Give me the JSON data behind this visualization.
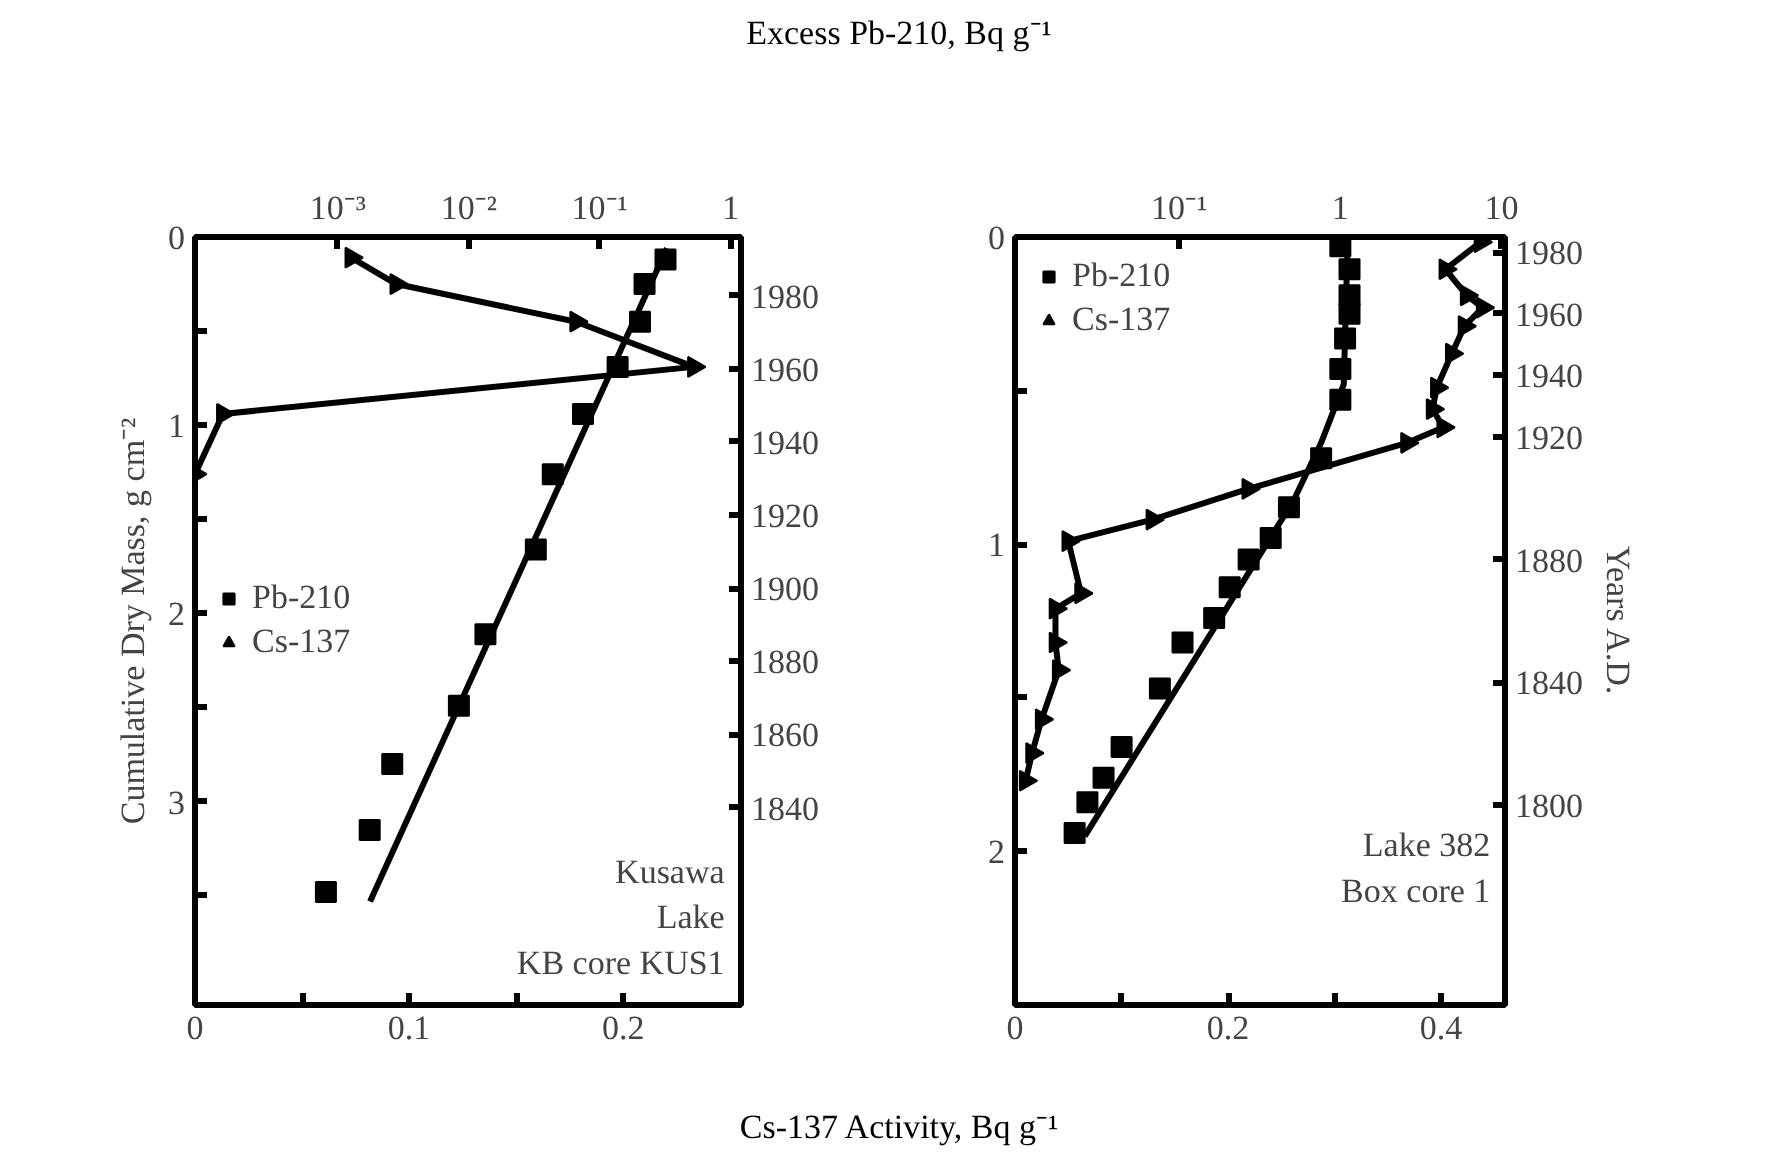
{
  "chart_data": [
    {
      "type": "line",
      "x2label": "Excess Pb-210, Bq g⁻¹",
      "xlabel": "Cs-137 Activity, Bq g⁻¹",
      "ylabel": "Cumulative Dry Mass, g cm⁻²",
      "xlim": [
        0,
        0.255
      ],
      "xticks": [
        0,
        {
          "value": 0.05,
          "label": null
        },
        0.1,
        {
          "value": 0.15,
          "label": null
        },
        0.2
      ],
      "x2lim": [
        8.1e-05,
        1.2
      ],
      "x2ticks": [
        {
          "value": 0.001,
          "label": "10⁻³"
        },
        {
          "value": 0.01,
          "label": "10⁻²"
        },
        {
          "value": 0.1,
          "label": "10⁻¹"
        },
        1
      ],
      "ylim": [
        4.08,
        0
      ],
      "yticks": [
        0,
        {
          "value": 0.5,
          "label": null
        },
        1,
        {
          "value": 1.5,
          "label": null
        },
        2,
        {
          "value": 2.5,
          "label": null
        },
        3,
        {
          "value": 3.5,
          "label": null
        }
      ],
      "y2lim": [
        1786,
        1996
      ],
      "y2ticks": [
        1980,
        1960,
        1940,
        1920,
        1900,
        1880,
        1860,
        1840
      ],
      "log": "x2",
      "legend": "left",
      "annotations": [
        "Kusawa\nLake\nKB core KUS1"
      ],
      "series": [
        {
          "name": "Pb-210",
          "type": "scatter",
          "marker": "square",
          "axis": "x2",
          "color": "#000000",
          "x": [
            0.318,
            0.22,
            0.203,
            0.137,
            0.0745,
            0.0438,
            0.0325,
            0.0134,
            0.0084,
            0.0026,
            0.00175,
            0.00081
          ],
          "values": [
            0.12,
            0.25,
            0.45,
            0.69,
            0.94,
            1.26,
            1.66,
            2.11,
            2.49,
            2.8,
            3.15,
            3.48
          ]
        },
        {
          "marker": "none",
          "axis": "x2",
          "color": "#000000",
          "x": [
            0.326,
            0.00176
          ],
          "values": [
            0.06,
            3.53
          ]
        },
        {
          "name": "Cs-137",
          "marker": "triangle",
          "color": "#000000",
          "x": [
            0.073,
            0.094,
            0.178,
            0.233,
            0.013,
            0.0
          ],
          "values": [
            0.11,
            0.25,
            0.45,
            0.69,
            0.94,
            1.26
          ]
        }
      ]
    },
    {
      "type": "line",
      "y2label": "Years A.D.",
      "xlim": [
        0,
        0.46
      ],
      "xticks": [
        0,
        {
          "value": 0.1,
          "label": null
        },
        0.2,
        {
          "value": 0.3,
          "label": null
        },
        0.4
      ],
      "x2lim": [
        0.0096,
        10.5
      ],
      "x2ticks": [
        {
          "value": 0.1,
          "label": "10⁻¹"
        },
        1,
        10
      ],
      "ylim": [
        2.5,
        0
      ],
      "yticks": [
        0,
        {
          "value": 0.5,
          "label": null
        },
        1,
        {
          "value": 1.5,
          "label": null
        },
        2
      ],
      "y2lim": [
        1735,
        1985
      ],
      "y2ticks": [
        1980,
        1960,
        1940,
        1920,
        1880,
        1840,
        1800
      ],
      "log": "x2",
      "legend": "top left",
      "annotations": [
        "Lake 382\nBox core 1"
      ],
      "series": [
        {
          "name": "Pb-210",
          "type": "scatter",
          "marker": "square",
          "axis": "x2",
          "color": "#000000",
          "x": [
            1.0,
            1.14,
            1.14,
            1.14,
            1.07,
            1.0,
            1.0,
            0.76,
            0.48,
            0.37,
            0.27,
            0.206,
            0.165,
            0.105,
            0.076,
            0.044,
            0.034,
            0.027,
            0.0225
          ],
          "values": [
            0.03,
            0.105,
            0.19,
            0.25,
            0.33,
            0.43,
            0.53,
            0.72,
            0.88,
            0.98,
            1.05,
            1.14,
            1.24,
            1.32,
            1.47,
            1.66,
            1.76,
            1.84,
            1.94
          ]
        },
        {
          "marker": "none",
          "axis": "x2",
          "color": "#000000",
          "x": [
            1.11,
            1.05,
            0.76,
            0.51,
            0.026
          ],
          "values": [
            0.01,
            0.48,
            0.67,
            0.86,
            1.95
          ]
        },
        {
          "name": "Cs-137",
          "marker": "triangle",
          "color": "#000000",
          "x": [
            0.437,
            0.404,
            0.424,
            0.439,
            0.422,
            0.41,
            0.396,
            0.392,
            0.402,
            0.368,
            0.219,
            0.129,
            0.05,
            0.062,
            0.038,
            0.038,
            0.041,
            0.025,
            0.016,
            0.01
          ],
          "values": [
            0.017,
            0.105,
            0.19,
            0.23,
            0.29,
            0.38,
            0.49,
            0.56,
            0.62,
            0.67,
            0.82,
            0.92,
            0.99,
            1.16,
            1.21,
            1.32,
            1.41,
            1.57,
            1.68,
            1.77
          ]
        }
      ]
    }
  ]
}
